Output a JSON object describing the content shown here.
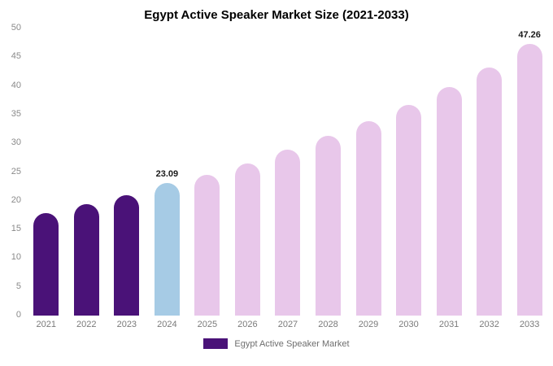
{
  "chart_data": {
    "type": "bar",
    "title": "Egypt Active Speaker Market Size (2021-2033)",
    "categories": [
      "2021",
      "2022",
      "2023",
      "2024",
      "2025",
      "2026",
      "2027",
      "2028",
      "2029",
      "2030",
      "2031",
      "2032",
      "2033"
    ],
    "values": [
      17.8,
      19.4,
      21.0,
      23.09,
      24.5,
      26.5,
      28.9,
      31.3,
      33.9,
      36.7,
      39.8,
      43.2,
      47.26
    ],
    "bar_colors": [
      "#4a1278",
      "#4a1278",
      "#4a1278",
      "#a6cbe5",
      "#e8c7ea",
      "#e8c7ea",
      "#e8c7ea",
      "#e8c7ea",
      "#e8c7ea",
      "#e8c7ea",
      "#e8c7ea",
      "#e8c7ea",
      "#e8c7ea"
    ],
    "data_labels": [
      "",
      "",
      "",
      "23.09",
      "",
      "",
      "",
      "",
      "",
      "",
      "",
      "",
      "47.26"
    ],
    "ylim": [
      0,
      50
    ],
    "yticks": [
      0,
      5,
      10,
      15,
      20,
      25,
      30,
      35,
      40,
      45,
      50
    ],
    "grid": false,
    "legend_position": "bottom",
    "legend": [
      {
        "label": "Egypt Active Speaker Market",
        "color": "#4a1278"
      }
    ]
  }
}
